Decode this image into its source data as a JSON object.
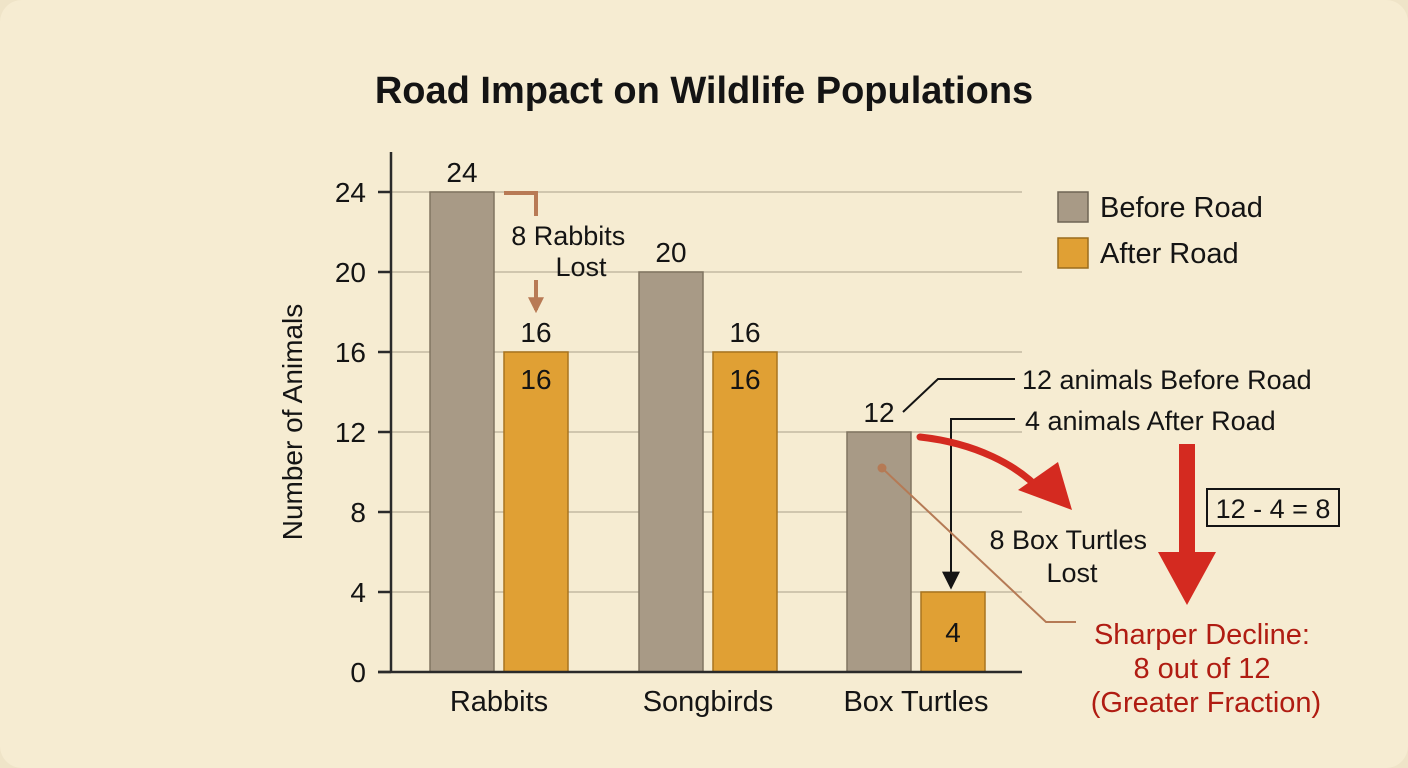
{
  "chart_data": {
    "type": "bar",
    "title": "Road Impact on Wildlife Populations",
    "xlabel": "",
    "ylabel": "Number of Animals",
    "categories": [
      "Rabbits",
      "Songbirds",
      "Box Turtles"
    ],
    "series": [
      {
        "name": "Before Road",
        "values": [
          24,
          20,
          12
        ],
        "color": "#a89a86"
      },
      {
        "name": "After Road",
        "values": [
          16,
          16,
          4
        ],
        "color": "#e0a034"
      }
    ],
    "ylim": [
      0,
      24
    ],
    "yticks": [
      "0",
      "4",
      "8",
      "12",
      "16",
      "20",
      "24"
    ],
    "grid": true,
    "legend_position": "top-right",
    "bar_labels": {
      "before_top": [
        "24",
        "20",
        "12"
      ],
      "after_top": [
        "16",
        "16",
        ""
      ],
      "after_inside": [
        "16",
        "16",
        "4"
      ]
    },
    "annotations": {
      "rabbits_loss": "8 Rabbits Lost",
      "before_note": "12 animals Before Road",
      "after_note": "4 animals After Road",
      "equation": "12 - 4 = 8",
      "turtles_loss": "8 Box Turtles Lost",
      "decline_line1": "Sharper Decline:",
      "decline_line2": "8 out of 12",
      "decline_line3": "(Greater Fraction)"
    }
  },
  "colors": {
    "accent_red": "#d42a20",
    "decline_text": "#b01c12",
    "rabbit_arrow": "#b87a55",
    "leader_line": "#b57a55"
  }
}
